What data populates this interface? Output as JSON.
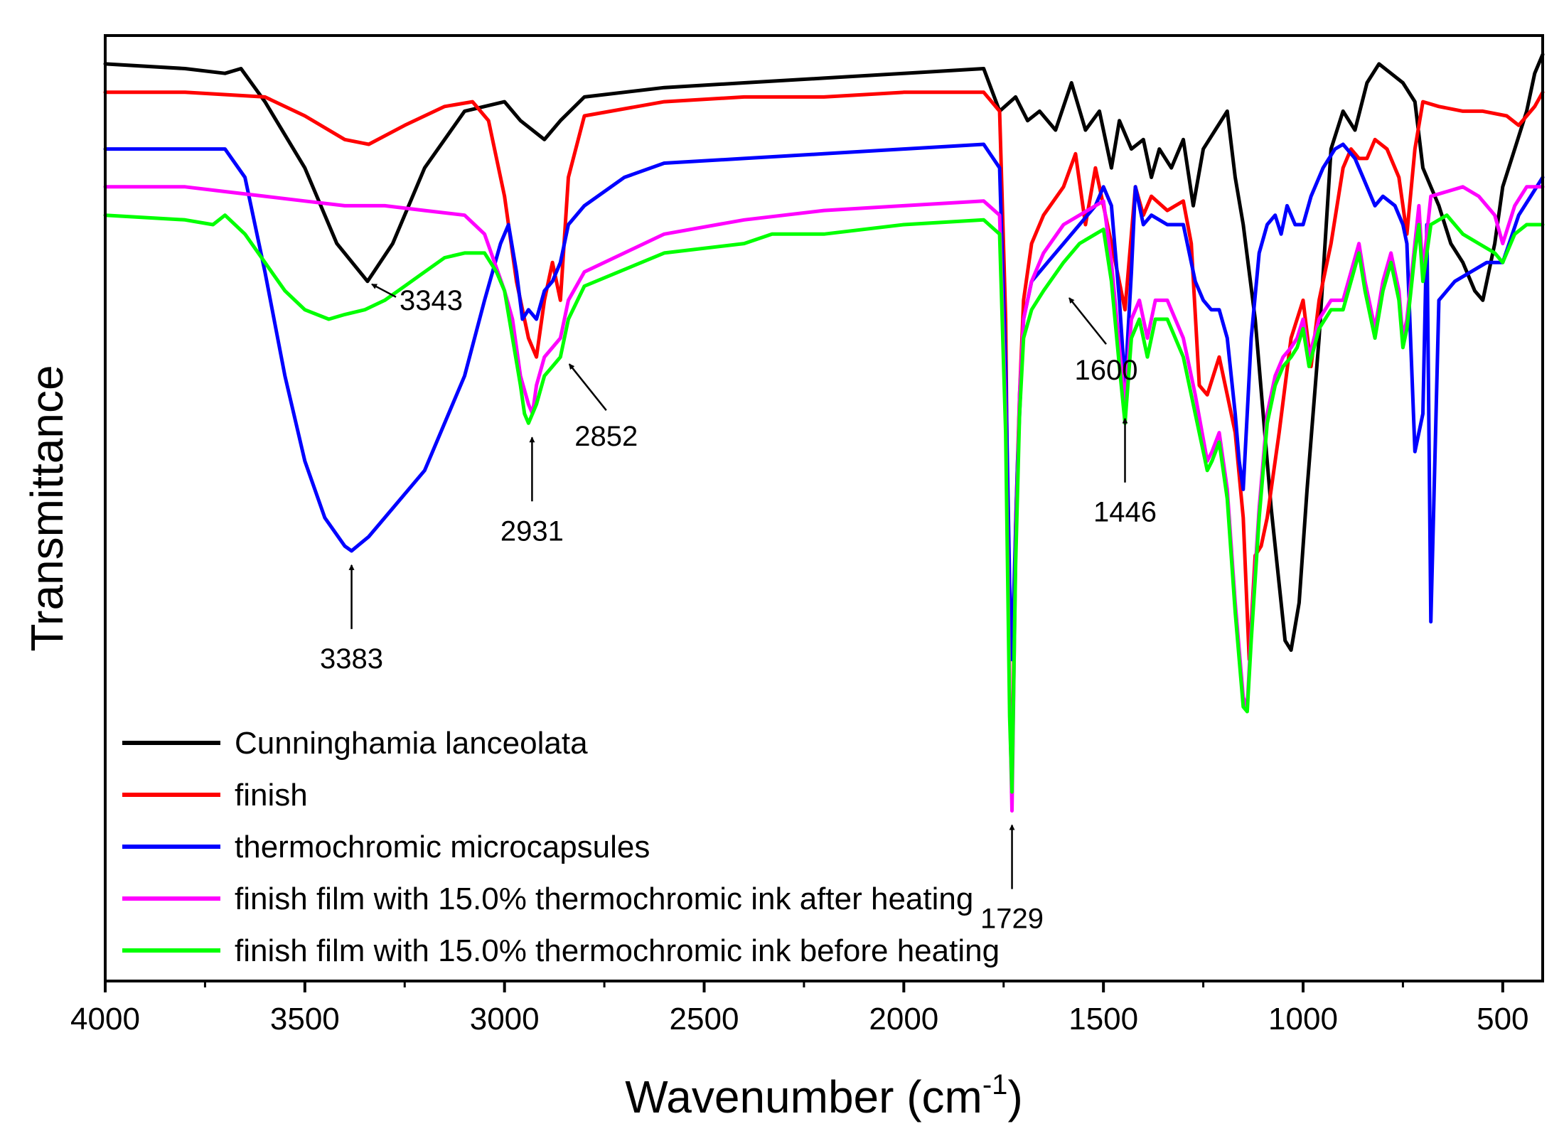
{
  "chart_data": {
    "type": "line",
    "xlabel": "Wavenumber (cm",
    "xlabel_sup": "-1",
    "xlabel_end": ")",
    "ylabel": "Transmittance",
    "xlim": [
      4000,
      400
    ],
    "x_reversed": true,
    "ylim": [
      0,
      100
    ],
    "x_ticks": [
      "4000",
      "3500",
      "3000",
      "2500",
      "2000",
      "1500",
      "1000",
      "500"
    ],
    "x_tick_values": [
      4000,
      3500,
      3000,
      2500,
      2000,
      1500,
      1000,
      500
    ],
    "grid": false,
    "legend_position": "bottom-left",
    "series": [
      {
        "name": "Cunninghamia lanceolata",
        "color": "#000000",
        "x": [
          4000,
          3800,
          3700,
          3660,
          3600,
          3500,
          3420,
          3343,
          3280,
          3200,
          3100,
          3000,
          2960,
          2900,
          2860,
          2800,
          2600,
          2400,
          2200,
          2000,
          1800,
          1760,
          1720,
          1690,
          1660,
          1620,
          1580,
          1545,
          1510,
          1480,
          1460,
          1430,
          1400,
          1380,
          1360,
          1330,
          1300,
          1275,
          1250,
          1220,
          1190,
          1170,
          1150,
          1120,
          1100,
          1080,
          1060,
          1045,
          1030,
          1010,
          990,
          960,
          930,
          900,
          870,
          840,
          810,
          780,
          750,
          720,
          700,
          680,
          660,
          630,
          600,
          570,
          550,
          520,
          500,
          470,
          440,
          420,
          400
        ],
        "y": [
          97,
          96.5,
          96,
          96.5,
          93,
          86,
          78,
          74,
          78,
          86,
          92,
          93,
          91,
          89,
          91,
          93.5,
          94.5,
          95,
          95.5,
          96,
          96.5,
          92,
          93.5,
          91,
          92,
          90,
          95,
          90,
          92,
          86,
          91,
          88,
          89,
          85,
          88,
          86,
          89,
          82,
          88,
          90,
          92,
          85,
          80,
          70,
          60,
          50,
          42,
          36,
          35,
          40,
          52,
          68,
          88,
          92,
          90,
          95,
          97,
          96,
          95,
          93,
          86,
          84,
          82,
          78,
          76,
          73,
          72,
          78,
          84,
          88,
          92,
          96,
          98
        ]
      },
      {
        "name": "finish",
        "color": "#ff0000",
        "x": [
          4000,
          3800,
          3600,
          3500,
          3400,
          3340,
          3250,
          3150,
          3080,
          3040,
          3000,
          2970,
          2940,
          2920,
          2900,
          2880,
          2860,
          2840,
          2800,
          2600,
          2400,
          2200,
          2000,
          1800,
          1760,
          1745,
          1735,
          1729,
          1720,
          1710,
          1700,
          1680,
          1650,
          1600,
          1570,
          1545,
          1520,
          1500,
          1470,
          1446,
          1420,
          1400,
          1380,
          1340,
          1300,
          1280,
          1260,
          1240,
          1225,
          1210,
          1190,
          1170,
          1150,
          1135,
          1120,
          1105,
          1090,
          1060,
          1030,
          1000,
          980,
          960,
          930,
          900,
          880,
          860,
          840,
          820,
          790,
          760,
          740,
          720,
          700,
          660,
          600,
          550,
          490,
          460,
          420,
          400
        ],
        "y": [
          94,
          94,
          93.5,
          91.5,
          89,
          88.5,
          90.5,
          92.5,
          93,
          91,
          83,
          74,
          68,
          66,
          72,
          76,
          72,
          85,
          91.5,
          93,
          93.5,
          93.5,
          94,
          94,
          92,
          70,
          30,
          20,
          48,
          62,
          72,
          78,
          81,
          84,
          87.5,
          80,
          86,
          82,
          76,
          71,
          84,
          81,
          83,
          81.5,
          82.5,
          78,
          63,
          62,
          64,
          66,
          62,
          58,
          49,
          34,
          45,
          46,
          49,
          58,
          68,
          72,
          65,
          72,
          78,
          86,
          88,
          87,
          87,
          89,
          88,
          85,
          79,
          88,
          93,
          92.5,
          92,
          92,
          91.5,
          90.5,
          92.5,
          94
        ]
      },
      {
        "name": "thermochromic microcapsules",
        "color": "#0000ff",
        "x": [
          4000,
          3800,
          3700,
          3650,
          3600,
          3550,
          3500,
          3450,
          3400,
          3383,
          3340,
          3280,
          3200,
          3100,
          3050,
          3010,
          2990,
          2970,
          2955,
          2940,
          2920,
          2900,
          2880,
          2860,
          2840,
          2800,
          2700,
          2600,
          2400,
          2200,
          2000,
          1800,
          1760,
          1745,
          1735,
          1729,
          1715,
          1700,
          1680,
          1640,
          1600,
          1560,
          1520,
          1500,
          1480,
          1460,
          1446,
          1430,
          1420,
          1400,
          1380,
          1340,
          1300,
          1270,
          1250,
          1230,
          1210,
          1190,
          1170,
          1160,
          1150,
          1130,
          1110,
          1090,
          1070,
          1055,
          1040,
          1020,
          1000,
          980,
          950,
          920,
          900,
          870,
          850,
          820,
          800,
          770,
          750,
          740,
          720,
          700,
          690,
          680,
          660,
          620,
          580,
          540,
          500,
          460,
          430,
          400
        ],
        "y": [
          88,
          88,
          88,
          85,
          75,
          64,
          55,
          49,
          46,
          45.5,
          47,
          50,
          54,
          64,
          72,
          78,
          80,
          75,
          70,
          71,
          70,
          73,
          74,
          76,
          80,
          82,
          85,
          86.5,
          87,
          87.5,
          88,
          88.5,
          86,
          65,
          42,
          34,
          55,
          70,
          74,
          76,
          78,
          80,
          82,
          84,
          82,
          72,
          63,
          75,
          84,
          80,
          81,
          80,
          80,
          74,
          72,
          71,
          71,
          68,
          60,
          55,
          52,
          68,
          77,
          80,
          81,
          79,
          82,
          80,
          80,
          83,
          86,
          88,
          88.5,
          87,
          85,
          82,
          83,
          82,
          80,
          78,
          56,
          60,
          80,
          38,
          72,
          74,
          75,
          76,
          76,
          81,
          83,
          85
        ]
      },
      {
        "name": "finish film with 15.0% thermochromic ink after heating",
        "color": "#ff00ff",
        "x": [
          4000,
          3800,
          3700,
          3600,
          3500,
          3400,
          3300,
          3200,
          3100,
          3050,
          3000,
          2980,
          2960,
          2940,
          2930,
          2920,
          2900,
          2880,
          2860,
          2840,
          2800,
          2600,
          2400,
          2200,
          2000,
          1800,
          1760,
          1745,
          1735,
          1729,
          1720,
          1710,
          1700,
          1680,
          1650,
          1600,
          1560,
          1520,
          1500,
          1480,
          1460,
          1446,
          1430,
          1410,
          1390,
          1370,
          1340,
          1300,
          1270,
          1240,
          1228,
          1210,
          1190,
          1170,
          1150,
          1140,
          1130,
          1110,
          1090,
          1070,
          1050,
          1030,
          1015,
          1000,
          985,
          960,
          930,
          900,
          880,
          860,
          845,
          820,
          800,
          780,
          760,
          750,
          740,
          720,
          710,
          700,
          680,
          640,
          600,
          560,
          520,
          500,
          470,
          440,
          400
        ],
        "y": [
          84,
          84,
          83.5,
          83,
          82.5,
          82,
          82,
          81.5,
          81,
          79,
          73,
          70,
          64,
          61,
          60,
          63,
          66,
          67,
          68,
          72,
          75,
          79,
          80.5,
          81.5,
          82,
          82.5,
          81,
          60,
          30,
          18,
          45,
          62,
          70,
          74,
          77,
          80,
          81,
          82,
          82.5,
          76,
          67,
          61,
          70,
          72,
          68,
          72,
          72,
          68,
          62,
          55,
          56,
          58,
          52,
          40,
          30,
          29,
          37,
          50,
          60,
          64,
          66,
          67,
          68,
          70,
          66,
          70,
          72,
          72,
          75,
          78,
          74,
          69,
          74,
          77,
          73,
          68,
          70,
          78,
          82,
          75,
          83,
          83.5,
          84,
          83,
          81,
          78,
          82,
          84,
          84
        ]
      },
      {
        "name": "finish film with 15.0% thermochromic ink before heating",
        "color": "#00ff00",
        "x": [
          4000,
          3800,
          3730,
          3700,
          3650,
          3600,
          3550,
          3500,
          3440,
          3400,
          3350,
          3300,
          3250,
          3200,
          3150,
          3100,
          3050,
          3020,
          3000,
          2980,
          2960,
          2950,
          2940,
          2930,
          2920,
          2900,
          2880,
          2860,
          2840,
          2800,
          2600,
          2400,
          2330,
          2200,
          2000,
          1800,
          1760,
          1745,
          1735,
          1729,
          1720,
          1710,
          1700,
          1680,
          1650,
          1600,
          1560,
          1520,
          1500,
          1480,
          1460,
          1446,
          1430,
          1410,
          1390,
          1370,
          1340,
          1300,
          1270,
          1240,
          1228,
          1210,
          1190,
          1170,
          1150,
          1140,
          1130,
          1110,
          1090,
          1070,
          1050,
          1030,
          1015,
          1000,
          985,
          960,
          930,
          900,
          880,
          860,
          845,
          820,
          800,
          780,
          760,
          750,
          740,
          720,
          710,
          700,
          680,
          640,
          600,
          560,
          520,
          500,
          470,
          440,
          400
        ],
        "y": [
          81,
          80.5,
          80,
          81,
          79,
          76,
          73,
          71,
          70,
          70.5,
          71,
          72,
          73.5,
          75,
          76.5,
          77,
          77,
          75,
          73,
          68,
          63,
          60,
          59,
          60,
          61,
          64,
          65,
          66,
          70,
          73.5,
          77,
          78,
          79,
          79,
          80,
          80.5,
          79,
          58,
          28,
          20,
          44,
          60,
          68,
          71,
          73,
          76,
          78,
          79,
          79.5,
          74,
          65,
          59,
          68,
          70,
          66,
          70,
          70,
          66,
          60,
          54,
          55,
          57,
          51,
          39,
          29,
          28.5,
          36,
          49,
          59,
          63,
          65,
          66,
          67,
          69,
          65,
          69,
          71,
          71,
          74,
          77,
          73,
          68,
          73,
          76,
          72,
          67,
          69,
          77,
          80,
          74,
          80,
          81,
          79,
          78,
          77,
          76,
          79,
          80,
          80
        ]
      }
    ],
    "annotations": [
      {
        "label": "3343",
        "x": 3343,
        "y": 74,
        "arrow": "to-peak-from-right"
      },
      {
        "label": "3383",
        "x": 3383,
        "y": 45.5,
        "arrow": "up"
      },
      {
        "label": "2931",
        "x": 2931,
        "y": 59,
        "arrow": "up"
      },
      {
        "label": "2852",
        "x": 2852,
        "y": 66,
        "arrow": "to-peak-from-below-right"
      },
      {
        "label": "1729",
        "x": 1729,
        "y": 18,
        "arrow": "up"
      },
      {
        "label": "1600",
        "x": 1600,
        "y": 73,
        "arrow": "to-peak-from-below-right"
      },
      {
        "label": "1446",
        "x": 1446,
        "y": 61,
        "arrow": "up"
      }
    ]
  }
}
